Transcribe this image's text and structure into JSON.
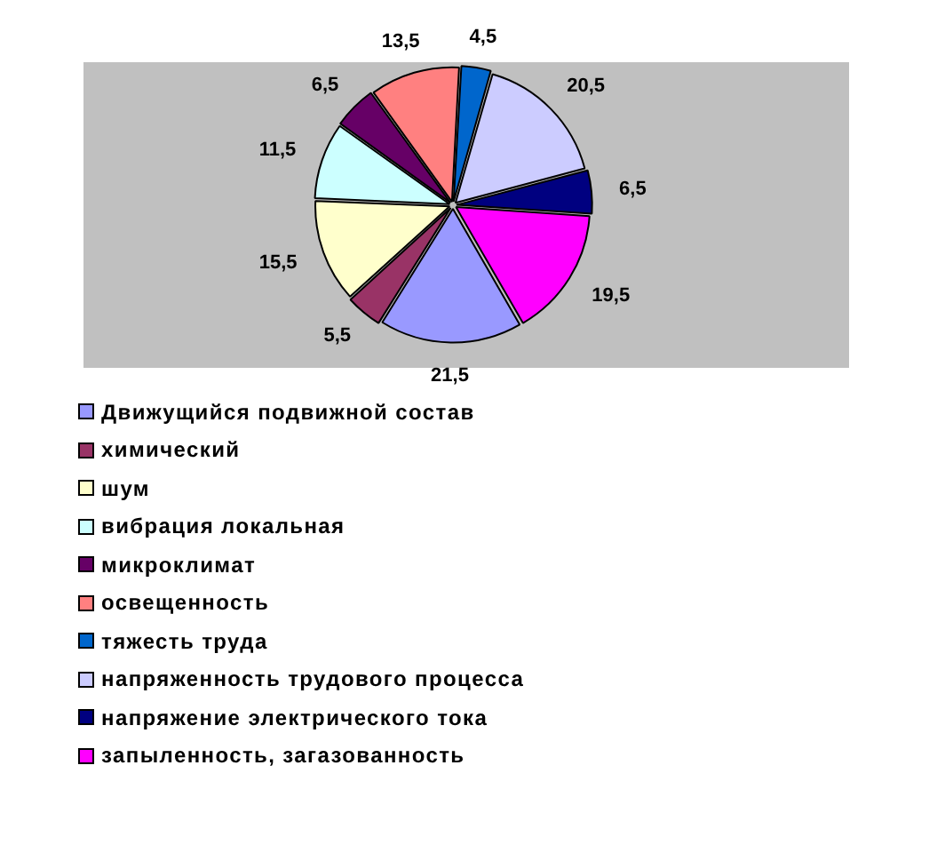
{
  "chart_data": {
    "type": "pie",
    "categories": [
      "Движущийся подвижной состав",
      "химический",
      "шум",
      "вибрация локальная",
      "микроклимат",
      "освещенность",
      "тяжесть труда",
      "напряженность трудового процесса",
      "напряжение электрического тока",
      "запыленность, загазованность"
    ],
    "values": [
      21.5,
      5.5,
      15.5,
      11.5,
      6.5,
      13.5,
      4.5,
      20.5,
      6.5,
      19.5
    ],
    "value_labels": [
      "21,5",
      "5,5",
      "15,5",
      "11,5",
      "6,5",
      "13,5",
      "4,5",
      "20,5",
      "6,5",
      "19,5"
    ],
    "colors": [
      "#9999ff",
      "#993366",
      "#ffffcc",
      "#ccffff",
      "#660066",
      "#ff8080",
      "#0066cc",
      "#ccccff",
      "#000080",
      "#ff00ff"
    ],
    "legend": "bottom"
  }
}
